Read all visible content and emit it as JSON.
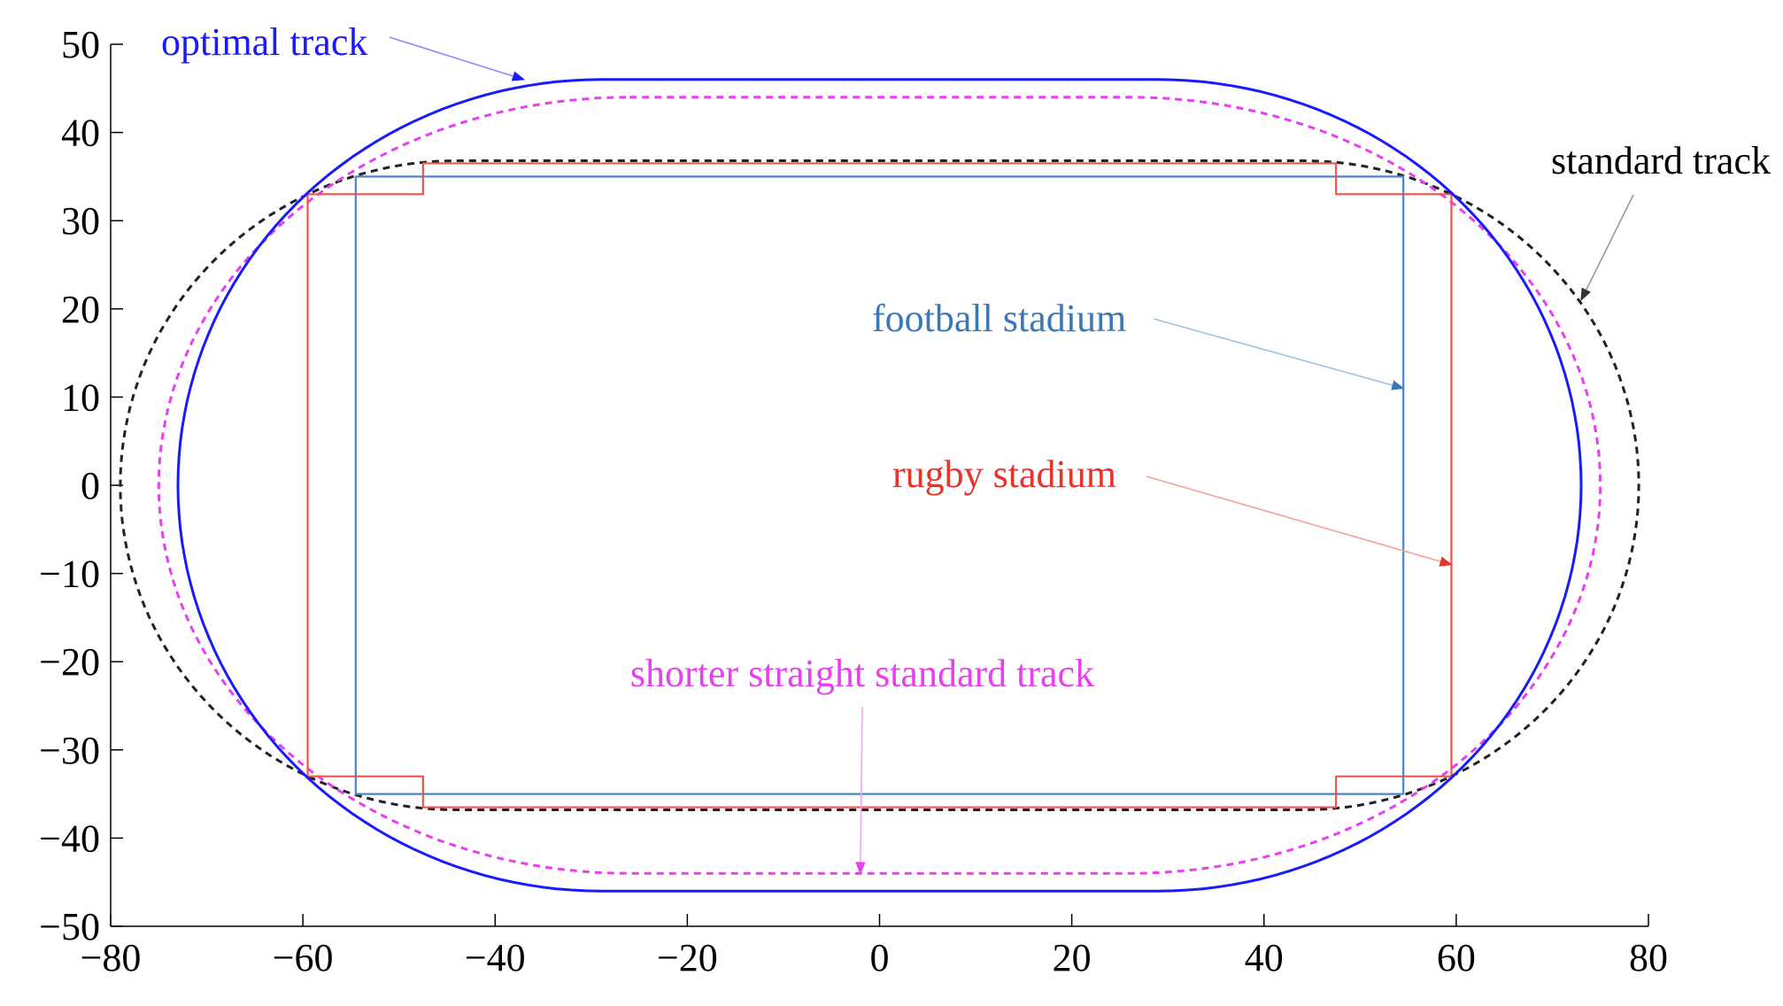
{
  "chart_data": {
    "type": "line",
    "title": "",
    "xlabel": "",
    "ylabel": "",
    "xlim": [
      -80,
      80
    ],
    "ylim": [
      -50,
      50
    ],
    "xticks": [
      -80,
      -60,
      -40,
      -20,
      0,
      20,
      40,
      60,
      80
    ],
    "yticks": [
      50,
      40,
      30,
      20,
      10,
      0,
      -10,
      -20,
      -30,
      -40,
      -50
    ],
    "grid": false,
    "legend": "none",
    "series": [
      {
        "name": "optimal track",
        "color": "#1a1aff",
        "style": "solid",
        "shape": "stadium",
        "straight_x": [
          -29,
          29
        ],
        "half_height": 46,
        "x_extent": [
          -73,
          73
        ]
      },
      {
        "name": "shorter straight standard track",
        "color": "#e83ff0",
        "style": "dashed",
        "shape": "stadium",
        "straight_x": [
          -26,
          26
        ],
        "half_height": 44,
        "x_extent": [
          -75,
          75
        ]
      },
      {
        "name": "standard track",
        "color": "#222222",
        "style": "dashed",
        "shape": "stadium",
        "straight_x": [
          -44,
          44
        ],
        "half_height": 36.8,
        "x_extent": [
          -79,
          79
        ]
      },
      {
        "name": "football stadium",
        "color": "#4a86c8",
        "style": "solid",
        "shape": "rectangle",
        "x": [
          -54.5,
          54.5
        ],
        "y": [
          -35,
          35
        ]
      },
      {
        "name": "rugby stadium",
        "color": "#e8564a",
        "style": "solid",
        "shape": "rectangle-with-corner-notches",
        "outer_x": [
          -59.5,
          59.5
        ],
        "outer_y": [
          -33,
          33
        ],
        "inner_x": [
          -47.5,
          47.5
        ],
        "inner_y": [
          -36.5,
          36.5
        ]
      }
    ],
    "annotations": [
      {
        "text": "optimal track",
        "color": "#1a1aff",
        "arrow_to": [
          -37,
          46
        ]
      },
      {
        "text": "standard track",
        "color": "#000000",
        "arrow_to": [
          73,
          21
        ]
      },
      {
        "text": "football stadium",
        "color": "#3a78b8",
        "arrow_to": [
          54.5,
          11
        ]
      },
      {
        "text": "rugby stadium",
        "color": "#e8322a",
        "arrow_to": [
          59.5,
          -9
        ]
      },
      {
        "text": "shorter straight standard track",
        "color": "#e83ff0",
        "arrow_to": [
          -2,
          -44
        ]
      }
    ]
  }
}
